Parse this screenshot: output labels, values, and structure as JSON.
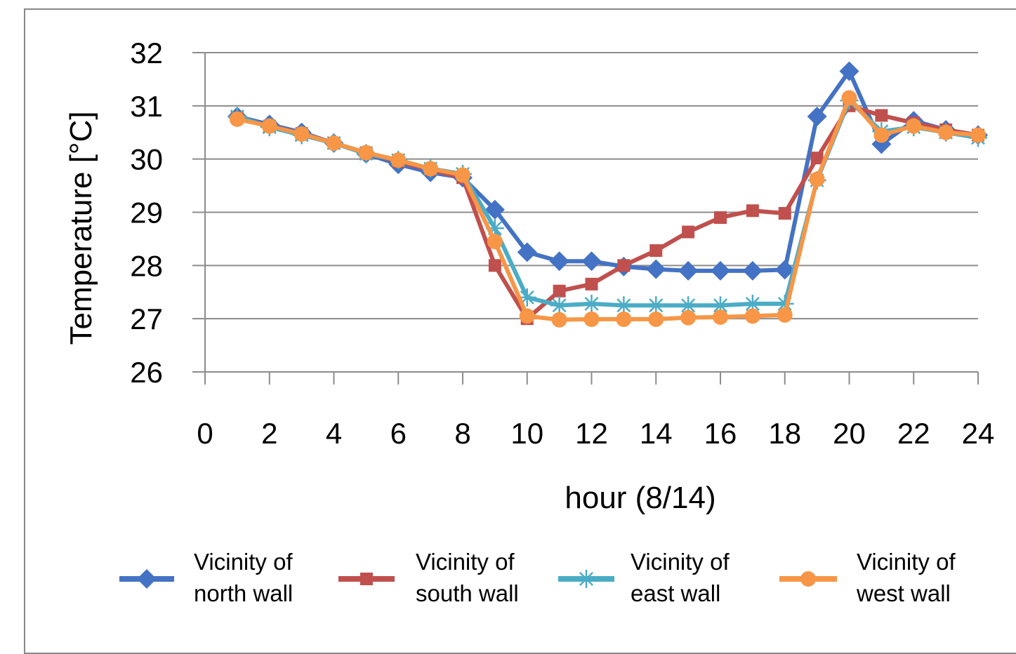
{
  "chart_data": {
    "type": "line",
    "xlabel": "hour (8/14)",
    "ylabel": "Temperature [°C]",
    "xlim": [
      0,
      24
    ],
    "ylim": [
      26,
      32
    ],
    "x_ticks": [
      0,
      2,
      4,
      6,
      8,
      10,
      12,
      14,
      16,
      18,
      20,
      22,
      24
    ],
    "y_ticks": [
      26,
      27,
      28,
      29,
      30,
      31,
      32
    ],
    "grid": "horizontal",
    "legend_position": "bottom",
    "x": [
      1,
      2,
      3,
      4,
      5,
      6,
      7,
      8,
      9,
      10,
      11,
      12,
      13,
      14,
      15,
      16,
      17,
      18,
      19,
      20,
      21,
      22,
      23,
      24
    ],
    "series": [
      {
        "name_lines": [
          "Vicinity of",
          "north wall"
        ],
        "color": "#4472C4",
        "marker": "diamond",
        "values": [
          30.8,
          30.65,
          30.5,
          30.3,
          30.1,
          29.9,
          29.75,
          29.65,
          29.05,
          28.25,
          28.08,
          28.08,
          27.98,
          27.93,
          27.9,
          27.9,
          27.9,
          27.92,
          30.8,
          31.65,
          30.28,
          30.72,
          30.55,
          30.45
        ]
      },
      {
        "name_lines": [
          "Vicinity of",
          "south wall"
        ],
        "color": "#C0504D",
        "marker": "square",
        "values": [
          30.78,
          30.62,
          30.48,
          30.3,
          30.12,
          29.95,
          29.8,
          29.65,
          28.0,
          27.0,
          27.52,
          27.65,
          28.0,
          28.28,
          28.63,
          28.9,
          29.03,
          28.98,
          30.02,
          31.0,
          30.82,
          30.68,
          30.55,
          30.45
        ]
      },
      {
        "name_lines": [
          "Vicinity of",
          "east wall"
        ],
        "color": "#4BACC6",
        "marker": "star",
        "values": [
          30.8,
          30.6,
          30.45,
          30.3,
          30.1,
          29.98,
          29.82,
          29.72,
          28.7,
          27.4,
          27.25,
          27.28,
          27.25,
          27.25,
          27.25,
          27.25,
          27.28,
          27.28,
          29.6,
          31.1,
          30.52,
          30.6,
          30.5,
          30.4
        ]
      },
      {
        "name_lines": [
          "Vicinity of",
          "west wall"
        ],
        "color": "#F79646",
        "marker": "circle",
        "values": [
          30.75,
          30.62,
          30.47,
          30.3,
          30.12,
          29.98,
          29.82,
          29.7,
          28.45,
          27.05,
          26.98,
          26.99,
          26.99,
          26.99,
          27.02,
          27.03,
          27.05,
          27.07,
          29.62,
          31.15,
          30.45,
          30.62,
          30.5,
          30.45
        ]
      }
    ]
  }
}
